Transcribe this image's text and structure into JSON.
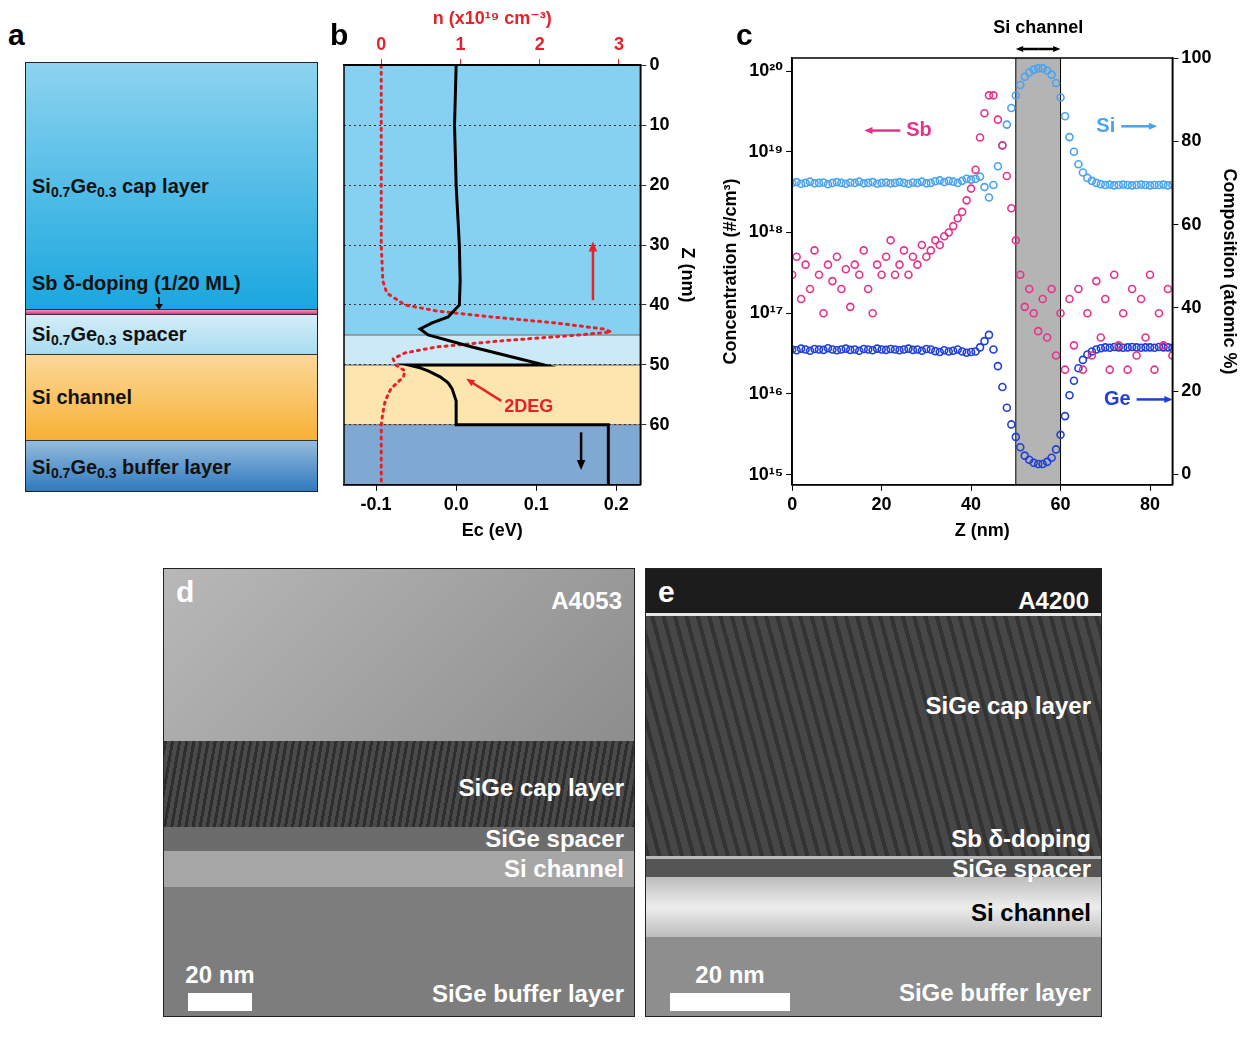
{
  "panels": {
    "a": {
      "letter": "a",
      "layers": [
        {
          "label": "Si0.7Ge0.3 cap layer",
          "color": "#1aa7df"
        },
        {
          "label": "Sb δ-doping (1/20 ML)",
          "color": "#e0307e"
        },
        {
          "label": "Si0.7Ge0.3 spacer",
          "color": "#a9dcf1"
        },
        {
          "label": "Si channel",
          "color": "#f8b134"
        },
        {
          "label": "Si0.7Ge0.3 buffer layer",
          "color": "#2b77bd"
        }
      ]
    },
    "d": {
      "letter": "d",
      "sample": "A4053",
      "labels": [
        "SiGe cap layer",
        "SiGe spacer",
        "Si channel",
        "SiGe buffer layer"
      ],
      "scale_bar": "20 nm"
    },
    "e": {
      "letter": "e",
      "sample": "A4200",
      "labels": [
        "SiGe cap layer",
        "Sb δ-doping",
        "SiGe spacer",
        "Si channel",
        "SiGe buffer layer"
      ],
      "scale_bar": "20 nm"
    }
  },
  "chart_data": [
    {
      "panel": "b",
      "type": "line",
      "x_label": "Ec (eV)",
      "x2_label": "n (x10¹⁹ cm⁻³)",
      "y_label": "Z (nm)",
      "xlim": [
        -0.14,
        0.23
      ],
      "xticks": [
        {
          "value": -0.1,
          "label": "-0.1"
        },
        {
          "value": 0,
          "label": "0.0"
        },
        {
          "value": 0.1,
          "label": "0.1"
        },
        {
          "value": 0.2,
          "label": "0.2"
        }
      ],
      "x2lim": [
        -0.47,
        3.27
      ],
      "x2ticks": [
        0,
        1,
        2,
        3
      ],
      "ylim": [
        0,
        70
      ],
      "yticks": [
        0,
        10,
        20,
        30,
        40,
        50,
        60
      ],
      "grid": "y",
      "bands": [
        {
          "from": 0,
          "to": 45,
          "color": "#86d1f1"
        },
        {
          "from": 45,
          "to": 50,
          "color": "#cbe9f6"
        },
        {
          "from": 50,
          "to": 60,
          "color": "#fde6ae"
        },
        {
          "from": 60,
          "to": 70,
          "color": "#7fa9d2"
        }
      ],
      "series": [
        {
          "name": "Ec",
          "color": "#000000",
          "line_style": "solid",
          "x": [
            0.0,
            -0.002,
            0.0,
            0.004,
            0.005,
            0.004,
            -0.01,
            -0.03,
            -0.045,
            -0.035,
            0.02,
            0.08,
            0.11,
            -0.06,
            -0.045,
            -0.035,
            -0.02,
            -0.01,
            -0.005,
            0.0,
            0.0,
            0.0,
            0.19,
            0.19
          ],
          "y": [
            0,
            10,
            20,
            30,
            36,
            40,
            42,
            43,
            44,
            45,
            47,
            49,
            50,
            50,
            50.5,
            51,
            52,
            53,
            54,
            56,
            58,
            60,
            60,
            70
          ]
        },
        {
          "name": "n",
          "color": "#e8202a",
          "line_style": "dotted",
          "axis": "x2",
          "x": [
            0,
            0,
            0.02,
            0.07,
            0.3,
            0.7,
            1.4,
            2.2,
            2.8,
            2.9,
            2.5,
            1.5,
            0.7,
            0.3,
            0.15,
            0.18,
            0.3,
            0.28,
            0.2,
            0.12,
            0.05,
            0.02,
            0,
            0
          ],
          "y": [
            0,
            30,
            36,
            38,
            40,
            41,
            42,
            43,
            44,
            44.5,
            45,
            46,
            47,
            48,
            49,
            50,
            51,
            52,
            53,
            54,
            56,
            58,
            60,
            70
          ]
        }
      ],
      "annotations": [
        {
          "text": "2DEG",
          "x": 0.06,
          "y": 57,
          "color": "#e8202a"
        }
      ]
    },
    {
      "panel": "c",
      "type": "scatter",
      "log": "y",
      "x_label": "Z (nm)",
      "y_label": "Concentration (#/cm³)",
      "y2_label": "Composition (atomic %)",
      "xlim": [
        0,
        85
      ],
      "xticks": [
        0,
        20,
        40,
        60,
        80
      ],
      "ylim": [
        750000000000000.0,
        1.45e+20
      ],
      "yticks": [
        {
          "value": 1000000000000000.0,
          "label": "10¹⁵"
        },
        {
          "value": 1e+16,
          "label": "10¹⁶"
        },
        {
          "value": 1e+17,
          "label": "10¹⁷"
        },
        {
          "value": 1e+18,
          "label": "10¹⁸"
        },
        {
          "value": 1e+19,
          "label": "10¹⁹"
        },
        {
          "value": 1e+20,
          "label": "10²⁰"
        }
      ],
      "y2lim": [
        -2.5,
        100
      ],
      "y2ticks": [
        0,
        20,
        40,
        60,
        80,
        100
      ],
      "grid": false,
      "highlight": {
        "label": "Si channel",
        "from": 50,
        "to": 60,
        "color": "#b4b4b4"
      },
      "x": [
        0,
        1,
        2,
        3,
        4,
        5,
        6,
        7,
        8,
        9,
        10,
        11,
        12,
        13,
        14,
        15,
        16,
        17,
        18,
        19,
        20,
        21,
        22,
        23,
        24,
        25,
        26,
        27,
        28,
        29,
        30,
        31,
        32,
        33,
        34,
        35,
        36,
        37,
        38,
        39,
        40,
        41,
        42,
        43,
        44,
        45,
        46,
        47,
        48,
        49,
        50,
        51,
        52,
        53,
        54,
        55,
        56,
        57,
        58,
        59,
        60,
        61,
        62,
        63,
        64,
        65,
        66,
        67,
        68,
        69,
        70,
        71,
        72,
        73,
        74,
        75,
        76,
        77,
        78,
        79,
        80,
        81,
        82,
        83,
        84,
        85
      ],
      "series": [
        {
          "name": "Sb",
          "color": "#e6338a",
          "marker": "circle",
          "values": [
            3e+17,
            5e+17,
            1.5e+17,
            4e+17,
            2e+17,
            6e+17,
            3e+17,
            1e+17,
            4e+17,
            2.5e+17,
            5e+17,
            2e+17,
            3.5e+17,
            1.2e+17,
            4e+17,
            3e+17,
            6e+17,
            2e+17,
            1e+17,
            4e+17,
            3e+17,
            5e+17,
            8e+17,
            3e+17,
            4e+17,
            6e+17,
            3e+17,
            5e+17,
            4e+17,
            7e+17,
            5e+17,
            6e+17,
            8e+17,
            7e+17,
            9e+17,
            1e+18,
            1.2e+18,
            1.5e+18,
            1.8e+18,
            2.5e+18,
            3.5e+18,
            6e+18,
            1.5e+19,
            3e+19,
            5e+19,
            5e+19,
            2.5e+19,
            1.2e+19,
            5e+18,
            2e+18,
            8e+17,
            3e+17,
            1.2e+17,
            2e+17,
            1e+17,
            6e+16,
            1.5e+17,
            5e+16,
            2e+17,
            3e+16,
            1e+17,
            2e+16,
            1.5e+17,
            4e+16,
            2e+17,
            2e+16,
            1e+17,
            3e+16,
            2.5e+17,
            5e+16,
            1.5e+17,
            2e+16,
            3e+17,
            4e+16,
            1e+17,
            2e+16,
            2e+17,
            3e+16,
            1.5e+17,
            5e+16,
            3e+17,
            2e+16,
            1e+17,
            4e+16,
            2e+17,
            3e+16
          ]
        },
        {
          "name": "Si",
          "color": "#4aa3f0",
          "marker": "circle",
          "axis": "y2",
          "values": [
            70,
            70.2,
            69.8,
            70,
            70.3,
            69.9,
            70,
            70.1,
            69.7,
            70,
            70.2,
            70,
            69.8,
            70.1,
            70,
            70.3,
            69.9,
            70,
            70.2,
            69.8,
            70,
            70.1,
            69.9,
            70,
            70.2,
            70,
            69.8,
            70.1,
            70,
            70.3,
            69.9,
            70,
            70.4,
            70.6,
            70.2,
            70.5,
            70.3,
            70,
            70.5,
            71,
            70.8,
            71,
            71.5,
            69,
            66.5,
            69.5,
            74,
            79,
            84,
            88,
            91,
            93.5,
            95.5,
            96.5,
            97.2,
            97.5,
            97.5,
            97,
            96,
            94,
            90.5,
            86,
            81,
            77.5,
            74.5,
            72.5,
            71.2,
            70.5,
            70,
            69.7,
            69.5,
            69.6,
            69.4,
            69.5,
            69.6,
            69.5,
            69.4,
            69.5,
            69.6,
            69.5,
            69.4,
            69.5,
            69.5,
            69.6,
            69.4,
            69.5
          ]
        },
        {
          "name": "Ge",
          "color": "#1f3fd6",
          "marker": "circle",
          "axis": "y2",
          "values": [
            30,
            29.8,
            30.2,
            30,
            29.7,
            30.1,
            30,
            29.9,
            30.3,
            30,
            29.8,
            30,
            30.2,
            29.9,
            30,
            29.7,
            30.1,
            30,
            29.8,
            30.2,
            30,
            29.9,
            30.1,
            30,
            29.8,
            30,
            30.2,
            29.9,
            30,
            29.7,
            30.1,
            30,
            29.6,
            29.4,
            29.8,
            29.5,
            29.7,
            30,
            29.5,
            29.2,
            29.4,
            29.5,
            30.5,
            32,
            33.5,
            30,
            26,
            21,
            16,
            12,
            9,
            6.5,
            4.5,
            3.5,
            2.8,
            2.5,
            2.5,
            3,
            4,
            6,
            9.5,
            14,
            19,
            22.5,
            25.5,
            27.5,
            28.8,
            29.5,
            30,
            30.3,
            30.5,
            30.4,
            30.6,
            30.5,
            30.4,
            30.5,
            30.6,
            30.5,
            30.4,
            30.5,
            30.5,
            30.4,
            30.6,
            30.5,
            30.5,
            30.4
          ]
        }
      ]
    }
  ]
}
